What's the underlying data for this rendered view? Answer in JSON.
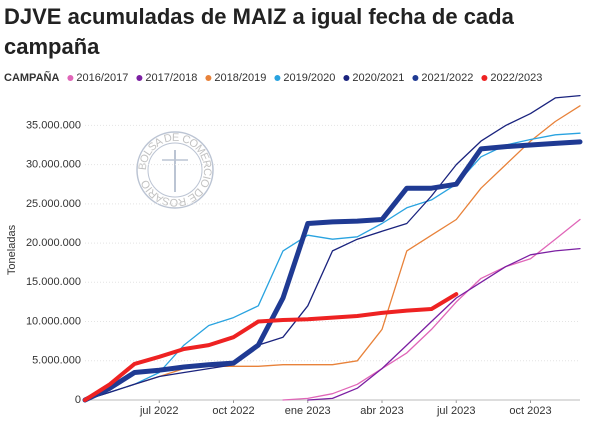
{
  "chart_data": {
    "type": "line",
    "title": "DJVE acumuladas de MAIZ a igual fecha de cada campaña",
    "legend_title": "CAMPAÑA",
    "ylabel": "Toneladas",
    "watermark": "BOLSA DE COMERCIO DE ROSARIO",
    "x": [
      "2022-04",
      "2022-05",
      "2022-06",
      "2022-07",
      "2022-08",
      "2022-09",
      "2022-10",
      "2022-11",
      "2022-12",
      "2023-01",
      "2023-02",
      "2023-03",
      "2023-04",
      "2023-05",
      "2023-06",
      "2023-07",
      "2023-08",
      "2023-09",
      "2023-10",
      "2023-11",
      "2023-12"
    ],
    "xlim": [
      "2022-04",
      "2023-12"
    ],
    "xticks": [
      {
        "value": "2022-07",
        "label": "jul 2022"
      },
      {
        "value": "2022-10",
        "label": "oct 2022"
      },
      {
        "value": "2023-01",
        "label": "ene 2023"
      },
      {
        "value": "2023-04",
        "label": "abr 2023"
      },
      {
        "value": "2023-07",
        "label": "jul 2023"
      },
      {
        "value": "2023-10",
        "label": "oct 2023"
      }
    ],
    "ylim": [
      0,
      39000000
    ],
    "yticks": [
      0,
      {
        "value": 5000000,
        "label": "5.000.000"
      },
      {
        "value": 10000000,
        "label": "10.000.000"
      },
      {
        "value": 15000000,
        "label": "15.000.000"
      },
      {
        "value": 20000000,
        "label": "20.000.000"
      },
      {
        "value": 25000000,
        "label": "25.000.000"
      },
      {
        "value": 30000000,
        "label": "30.000.000"
      },
      {
        "value": 35000000,
        "label": "35.000.000"
      }
    ],
    "grid": true,
    "series": [
      {
        "name": "2016/2017",
        "color": "#e066b8",
        "line_width": 1.3,
        "values": [
          null,
          null,
          null,
          null,
          null,
          null,
          null,
          null,
          0,
          200000,
          800000,
          2000000,
          4000000,
          6000000,
          9000000,
          12500000,
          15500000,
          17000000,
          18000000,
          20500000,
          23000000
        ]
      },
      {
        "name": "2017/2018",
        "color": "#7b1fa2",
        "line_width": 1.3,
        "values": [
          null,
          null,
          null,
          null,
          null,
          null,
          null,
          null,
          null,
          0,
          200000,
          1500000,
          4000000,
          7000000,
          10000000,
          13000000,
          15000000,
          17000000,
          18500000,
          19000000,
          19300000
        ]
      },
      {
        "name": "2018/2019",
        "color": "#e8823a",
        "line_width": 1.3,
        "values": [
          0,
          1000000,
          2000000,
          3000000,
          4000000,
          4300000,
          4300000,
          4300000,
          4500000,
          4500000,
          4500000,
          5000000,
          9000000,
          19000000,
          21000000,
          23000000,
          27000000,
          30000000,
          33000000,
          35500000,
          37500000
        ]
      },
      {
        "name": "2019/2020",
        "color": "#29a3e0",
        "line_width": 1.3,
        "values": [
          0,
          1000000,
          2000000,
          3500000,
          7000000,
          9500000,
          10500000,
          12000000,
          19000000,
          21000000,
          20500000,
          20800000,
          22500000,
          24500000,
          25500000,
          27500000,
          31000000,
          32500000,
          33200000,
          33800000,
          34000000
        ]
      },
      {
        "name": "2020/2021",
        "color": "#1a237e",
        "line_width": 1.3,
        "values": [
          0,
          1000000,
          2000000,
          3000000,
          3500000,
          4000000,
          4500000,
          7000000,
          8000000,
          12000000,
          19000000,
          20500000,
          21500000,
          22500000,
          26000000,
          30000000,
          33000000,
          35000000,
          36500000,
          38500000,
          38800000
        ]
      },
      {
        "name": "2021/2022",
        "color": "#1f3a93",
        "line_width": 5,
        "values": [
          0,
          1500000,
          3500000,
          3800000,
          4200000,
          4500000,
          4700000,
          7000000,
          13000000,
          22500000,
          22700000,
          22800000,
          23000000,
          27000000,
          27000000,
          27500000,
          32000000,
          32300000,
          32500000,
          32700000,
          32900000
        ]
      },
      {
        "name": "2022/2023",
        "color": "#ee2222",
        "line_width": 4,
        "values": [
          0,
          2000000,
          4600000,
          5500000,
          6500000,
          7000000,
          8000000,
          10000000,
          10200000,
          10300000,
          10500000,
          10700000,
          11100000,
          11400000,
          11600000,
          13500000,
          null,
          null,
          null,
          null,
          null
        ]
      }
    ]
  }
}
